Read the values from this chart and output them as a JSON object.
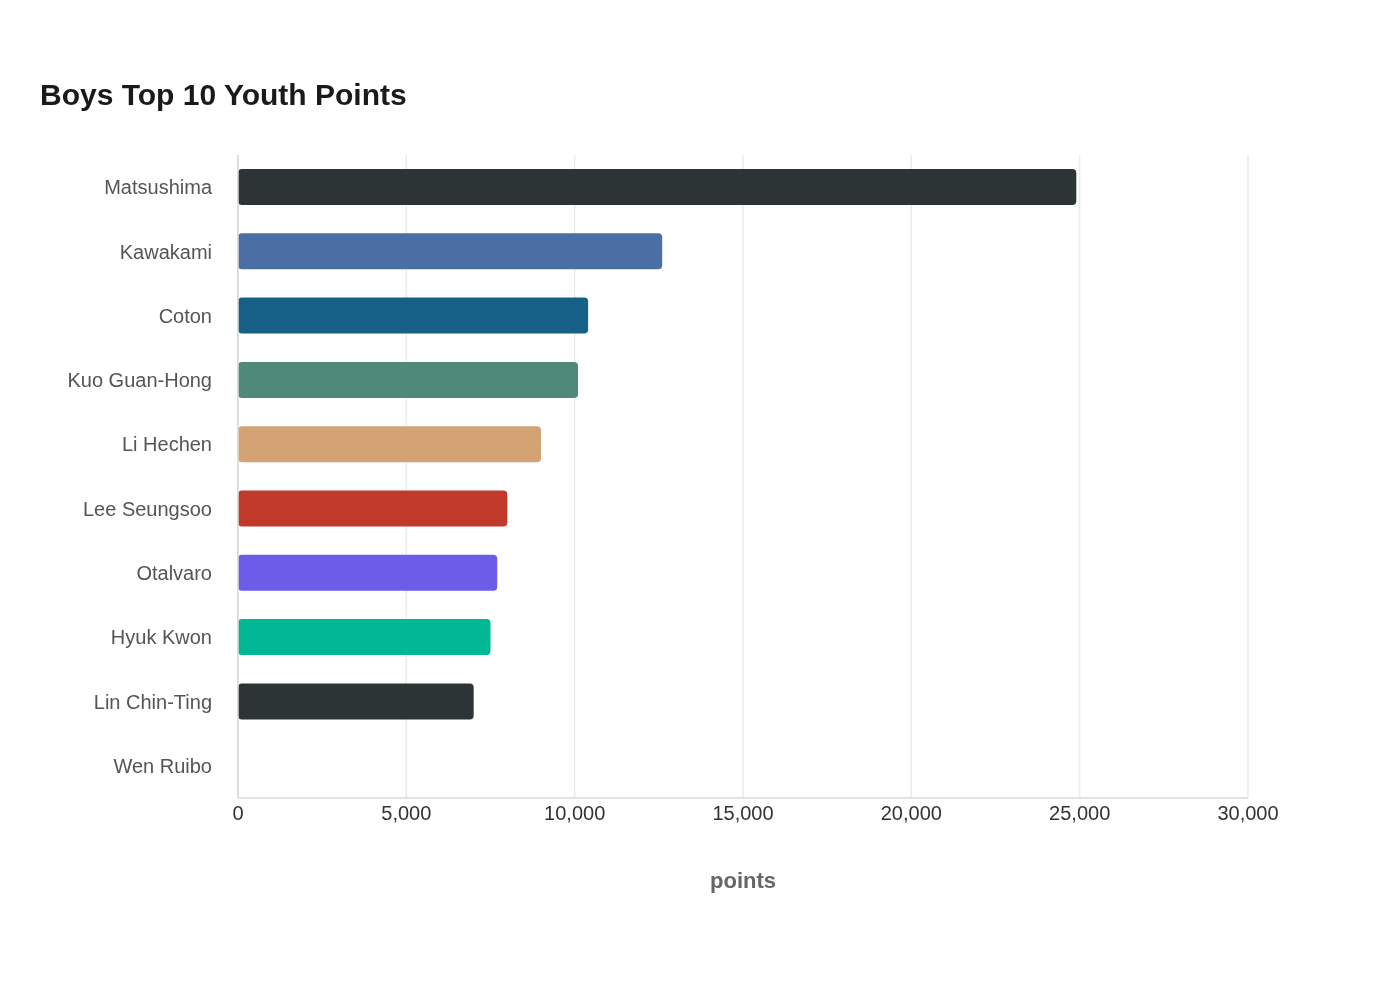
{
  "chart_data": {
    "type": "bar",
    "orientation": "horizontal",
    "title": "Boys Top 10 Youth Points",
    "xlabel": "points",
    "categories": [
      "Matsushima",
      "Kawakami",
      "Coton",
      "Kuo Guan-Hong",
      "Li Hechen",
      "Lee Seungsoo",
      "Otalvaro",
      "Hyuk Kwon",
      "Lin Chin-Ting",
      "Wen Ruibo"
    ],
    "values": [
      24900,
      12600,
      10400,
      10100,
      9000,
      8000,
      7700,
      7500,
      7000,
      0
    ],
    "colors": [
      "#2d3436",
      "#4a6fa5",
      "#166088",
      "#4f8a78",
      "#d4a373",
      "#c0392b",
      "#6c5ce7",
      "#00b894",
      "#2d3436",
      "#2d3436"
    ],
    "xlim": [
      0,
      30000
    ],
    "xticks": [
      {
        "value": 0,
        "label": "0"
      },
      {
        "value": 5000,
        "label": "5,000"
      },
      {
        "value": 10000,
        "label": "10,000"
      },
      {
        "value": 15000,
        "label": "15,000"
      },
      {
        "value": 20000,
        "label": "20,000"
      },
      {
        "value": 25000,
        "label": "25,000"
      },
      {
        "value": 30000,
        "label": "30,000"
      }
    ],
    "grid": "x"
  }
}
